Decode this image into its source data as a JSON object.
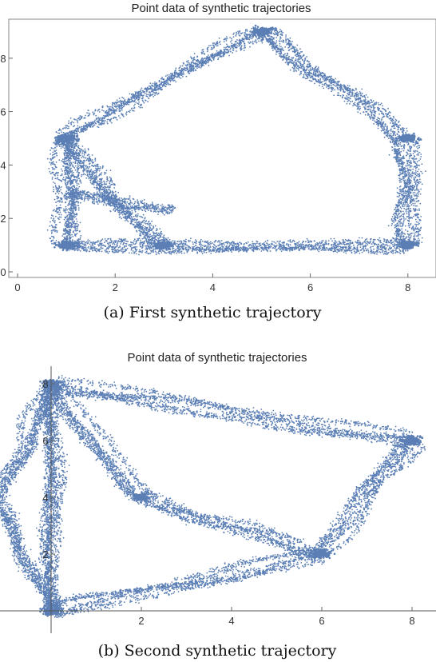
{
  "chart_data": [
    {
      "type": "scatter",
      "title": "Point data of synthetic trajectories",
      "caption": "(a) First synthetic trajectory",
      "xlabel": "",
      "ylabel": "",
      "xlim": [
        -0.15,
        8.6
      ],
      "ylim": [
        -0.1,
        9.4
      ],
      "x_ticks": [
        "0",
        "2",
        "4",
        "6",
        "8"
      ],
      "y_ticks": [
        "0",
        "2",
        "4",
        "6",
        "8"
      ],
      "frame": true,
      "color": "#5b7fb5",
      "clusters": [
        {
          "x": 5.0,
          "y": 9.0
        },
        {
          "x": 1.0,
          "y": 5.0
        },
        {
          "x": 8.0,
          "y": 5.0
        },
        {
          "x": 1.0,
          "y": 1.0
        },
        {
          "x": 3.0,
          "y": 1.0
        },
        {
          "x": 8.0,
          "y": 1.0
        }
      ],
      "paths": [
        {
          "from": [
            1.0,
            5.0
          ],
          "to": [
            5.0,
            9.0
          ]
        },
        {
          "from": [
            5.0,
            9.0
          ],
          "to": [
            8.0,
            5.0
          ]
        },
        {
          "from": [
            8.0,
            5.0
          ],
          "to": [
            8.0,
            1.0
          ]
        },
        {
          "from": [
            1.0,
            1.0
          ],
          "to": [
            8.0,
            1.0
          ]
        },
        {
          "from": [
            1.0,
            5.0
          ],
          "to": [
            1.0,
            1.0
          ]
        },
        {
          "from": [
            1.0,
            5.0
          ],
          "to": [
            3.0,
            1.0
          ]
        },
        {
          "from": [
            1.0,
            3.0
          ],
          "to": [
            3.2,
            2.3
          ]
        }
      ]
    },
    {
      "type": "scatter",
      "title": "Point data of synthetic trajectories",
      "caption": "(b) Second synthetic trajectory",
      "xlabel": "",
      "ylabel": "",
      "xlim": [
        -1.5,
        8.5
      ],
      "ylim": [
        -0.2,
        8.3
      ],
      "x_ticks": [
        "2",
        "4",
        "6",
        "8"
      ],
      "y_ticks": [
        "2",
        "4",
        "6",
        "8"
      ],
      "frame": false,
      "color": "#5b7fb5",
      "clusters": [
        {
          "x": 0.0,
          "y": 8.0
        },
        {
          "x": 8.0,
          "y": 6.0
        },
        {
          "x": 6.0,
          "y": 2.0
        },
        {
          "x": 0.0,
          "y": 0.0
        },
        {
          "x": 2.0,
          "y": 4.0
        }
      ],
      "paths": [
        {
          "from": [
            0.0,
            8.0
          ],
          "to": [
            8.0,
            6.0
          ]
        },
        {
          "from": [
            8.0,
            6.0
          ],
          "to": [
            6.0,
            2.0
          ]
        },
        {
          "from": [
            6.0,
            2.0
          ],
          "to": [
            0.0,
            0.0
          ]
        },
        {
          "from": [
            0.0,
            0.0
          ],
          "to": [
            0.0,
            8.0
          ]
        },
        {
          "from": [
            0.0,
            8.0
          ],
          "to": [
            2.0,
            4.0
          ]
        },
        {
          "from": [
            2.0,
            4.0
          ],
          "to": [
            6.0,
            2.0
          ]
        },
        {
          "from": [
            0.0,
            8.0
          ],
          "to": [
            -1.3,
            4.0
          ]
        },
        {
          "from": [
            -1.3,
            4.0
          ],
          "to": [
            0.0,
            0.0
          ]
        }
      ]
    }
  ]
}
